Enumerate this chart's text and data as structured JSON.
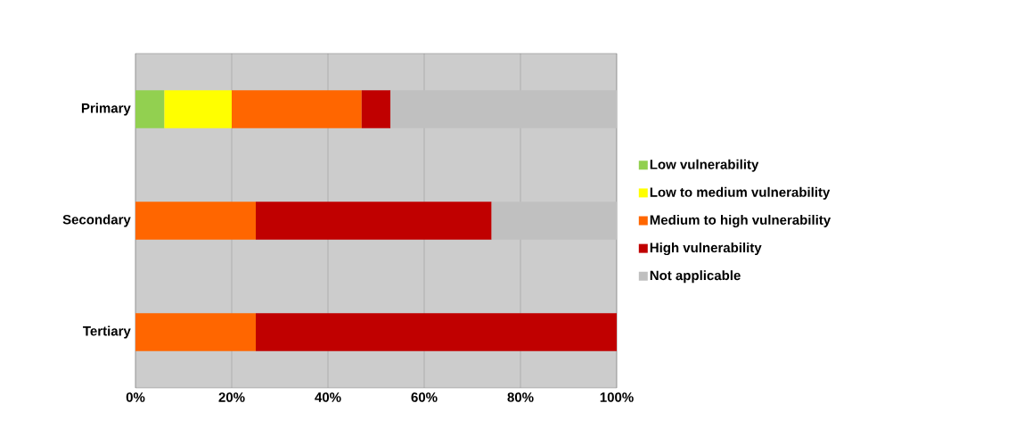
{
  "chart_data": {
    "type": "bar",
    "orientation": "horizontal",
    "stacked": true,
    "categories": [
      "Primary",
      "Secondary",
      "Tertiary"
    ],
    "series": [
      {
        "name": "Low vulnerability",
        "color": "#92d050",
        "values": [
          6,
          null,
          null
        ]
      },
      {
        "name": "Low to medium vulnerability",
        "color": "#ffff00",
        "values": [
          14,
          null,
          null
        ]
      },
      {
        "name": "Medium to high vulnerability",
        "color": "#ff6600",
        "values": [
          27,
          25,
          25
        ]
      },
      {
        "name": "High vulnerability",
        "color": "#c00000",
        "values": [
          6,
          49,
          75
        ]
      },
      {
        "name": "Not applicable",
        "color": "#c0c0c0",
        "values": [
          47,
          26,
          null
        ]
      }
    ],
    "xlim": [
      0,
      100
    ],
    "xticks": [
      {
        "value": 0,
        "label": "0%"
      },
      {
        "value": 20,
        "label": "20%"
      },
      {
        "value": 40,
        "label": "40%"
      },
      {
        "value": 60,
        "label": "60%"
      },
      {
        "value": 80,
        "label": "80%"
      },
      {
        "value": 100,
        "label": "100%"
      }
    ],
    "grid": "x",
    "legend": "right"
  }
}
